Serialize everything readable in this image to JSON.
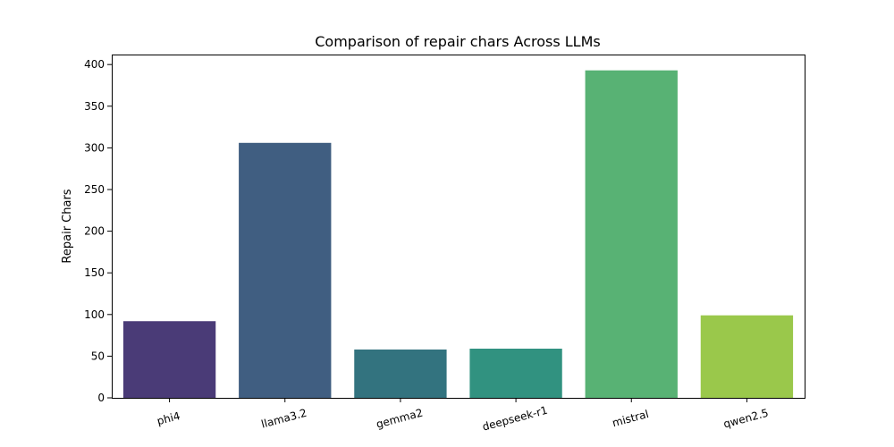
{
  "chart_data": {
    "type": "bar",
    "title": "Comparison of repair chars Across LLMs",
    "xlabel": "",
    "ylabel": "Repair Chars",
    "categories": [
      "phi4",
      "llama3.2",
      "gemma2",
      "deepseek-r1",
      "mistral",
      "qwen2.5"
    ],
    "values": [
      92,
      306,
      58,
      59,
      393,
      99
    ],
    "colors": [
      "#4a3b77",
      "#405e81",
      "#33737f",
      "#319280",
      "#58b274",
      "#9ac84b"
    ],
    "ylim": [
      0,
      412
    ],
    "yticks": [
      0,
      50,
      100,
      150,
      200,
      250,
      300,
      350,
      400
    ],
    "grid": false,
    "legend": "none"
  }
}
